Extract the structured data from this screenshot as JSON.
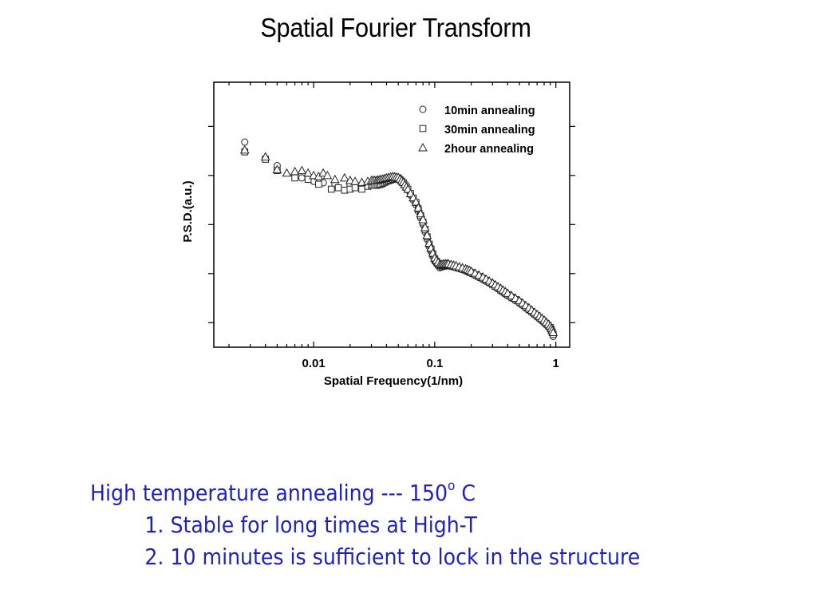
{
  "slide": {
    "title": "Spatial Fourier Transform",
    "notes": {
      "heading": "High temperature annealing --- 150",
      "degree_sup": "o",
      "heading_unit": " C",
      "items": [
        "1. Stable for long times at High-T",
        "2. 10 minutes is sufficient to lock in the structure"
      ]
    }
  },
  "chart_data": {
    "type": "scatter",
    "title": "",
    "xlabel": "Spatial Frequency(1/nm)",
    "ylabel": "P.S.D.(a.u.)",
    "x_scale": "log",
    "xlim": [
      0.0015,
      1.3
    ],
    "ylim": [
      0,
      5.4
    ],
    "x_ticks": [
      0.01,
      0.1,
      1
    ],
    "x_tick_labels": [
      "0.01",
      "0.1",
      "1"
    ],
    "y_tick_labels": [],
    "legend_position": "top-right",
    "grid": false,
    "series": [
      {
        "name": "10min annealing",
        "marker": "circle",
        "x": [
          0.0027,
          0.004,
          0.005,
          0.007,
          0.008,
          0.009,
          0.01,
          0.012,
          0.015,
          0.02,
          0.025,
          0.03,
          0.035,
          0.04,
          0.045,
          0.05,
          0.055,
          0.06,
          0.07,
          0.08,
          0.09,
          0.1,
          0.11,
          0.12,
          0.13,
          0.15,
          0.18,
          0.2,
          0.25,
          0.3,
          0.35,
          0.4,
          0.5,
          0.6,
          0.7,
          0.8,
          0.9,
          0.95
        ],
        "y": [
          4.18,
          3.85,
          3.7,
          3.52,
          3.45,
          3.42,
          3.38,
          3.35,
          3.32,
          3.3,
          3.32,
          3.35,
          3.38,
          3.42,
          3.45,
          3.45,
          3.35,
          3.2,
          2.9,
          2.5,
          2.05,
          1.75,
          1.62,
          1.65,
          1.66,
          1.62,
          1.56,
          1.5,
          1.38,
          1.27,
          1.15,
          1.05,
          0.9,
          0.75,
          0.62,
          0.5,
          0.38,
          0.22
        ]
      },
      {
        "name": "30min annealing",
        "marker": "square",
        "x": [
          0.0027,
          0.004,
          0.005,
          0.007,
          0.009,
          0.011,
          0.014,
          0.016,
          0.018,
          0.02,
          0.022,
          0.025,
          0.028,
          0.03,
          0.033,
          0.036,
          0.04,
          0.045,
          0.05,
          0.055,
          0.06,
          0.07,
          0.08,
          0.09,
          0.1,
          0.11,
          0.12,
          0.13,
          0.15,
          0.18,
          0.2,
          0.25,
          0.3,
          0.35,
          0.4,
          0.5,
          0.6,
          0.7,
          0.8,
          0.9,
          0.95
        ],
        "y": [
          3.98,
          3.83,
          3.6,
          3.45,
          3.42,
          3.32,
          3.22,
          3.25,
          3.2,
          3.22,
          3.25,
          3.22,
          3.28,
          3.3,
          3.3,
          3.32,
          3.38,
          3.42,
          3.45,
          3.35,
          3.22,
          2.95,
          2.55,
          2.1,
          1.8,
          1.66,
          1.68,
          1.68,
          1.63,
          1.57,
          1.52,
          1.4,
          1.28,
          1.17,
          1.07,
          0.92,
          0.77,
          0.64,
          0.52,
          0.4,
          0.26
        ]
      },
      {
        "name": "2hour annealing",
        "marker": "triangle",
        "x": [
          0.0027,
          0.004,
          0.005,
          0.006,
          0.007,
          0.008,
          0.009,
          0.01,
          0.011,
          0.012,
          0.013,
          0.015,
          0.018,
          0.02,
          0.022,
          0.025,
          0.028,
          0.03,
          0.033,
          0.036,
          0.04,
          0.045,
          0.05,
          0.055,
          0.06,
          0.07,
          0.08,
          0.09,
          0.1,
          0.11,
          0.12,
          0.13,
          0.15,
          0.18,
          0.2,
          0.25,
          0.3,
          0.35,
          0.4,
          0.5,
          0.6,
          0.7,
          0.8,
          0.9,
          0.95
        ],
        "y": [
          4.02,
          3.88,
          3.62,
          3.55,
          3.58,
          3.6,
          3.55,
          3.5,
          3.48,
          3.55,
          3.5,
          3.42,
          3.45,
          3.4,
          3.38,
          3.36,
          3.38,
          3.4,
          3.4,
          3.42,
          3.45,
          3.48,
          3.46,
          3.36,
          3.22,
          2.96,
          2.6,
          2.12,
          1.82,
          1.68,
          1.7,
          1.7,
          1.66,
          1.6,
          1.55,
          1.43,
          1.31,
          1.2,
          1.1,
          0.95,
          0.8,
          0.67,
          0.55,
          0.43,
          0.3
        ]
      }
    ]
  }
}
